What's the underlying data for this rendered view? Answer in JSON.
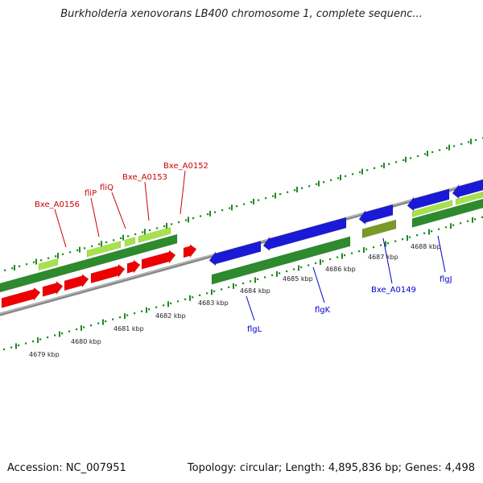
{
  "title": "Burkholderia xenovorans LB400 chromosome 1, complete sequenc...",
  "footer": {
    "accession": "Accession: NC_007951",
    "summary": "Topology: circular; Length: 4,895,836 bp; Genes: 4,498"
  },
  "colors": {
    "backbone": "#8a8a8a",
    "ticks": "#1f8a1f",
    "forward_cds": "#2d8a2d",
    "forward_highlight": "#a6e34a",
    "forward_cds_label": "#cc0000",
    "forward_gene_arrow": "#ee0000",
    "reverse_cds_label": "#0000cc",
    "reverse_gene_arrow": "#1a1ad6",
    "olive_feature": "#7a9a28"
  },
  "scale_labels": [
    "4679 kbp",
    "4680 kbp",
    "4681 kbp",
    "4682 kbp",
    "4683 kbp",
    "4684 kbp",
    "4685 kbp",
    "4686 kbp",
    "4687 kbp",
    "4688 kbp"
  ],
  "gene_labels_forward": [
    "Bxe_A0156",
    "fliP",
    "fliQ",
    "Bxe_A0153",
    "Bxe_A0152"
  ],
  "gene_labels_reverse": [
    "flgL",
    "flgK",
    "Bxe_A0149",
    "flgJ"
  ]
}
